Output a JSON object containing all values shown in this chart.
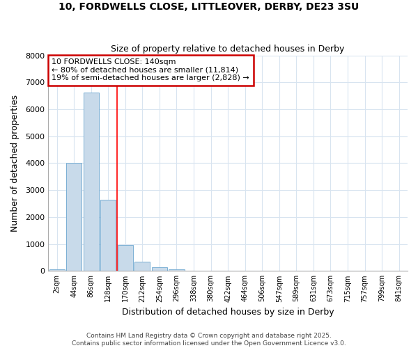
{
  "title_line1": "10, FORDWELLS CLOSE, LITTLEOVER, DERBY, DE23 3SU",
  "title_line2": "Size of property relative to detached houses in Derby",
  "xlabel": "Distribution of detached houses by size in Derby",
  "ylabel": "Number of detached properties",
  "bar_color": "#c8daea",
  "bar_edge_color": "#7aafd4",
  "categories": [
    "2sqm",
    "44sqm",
    "86sqm",
    "128sqm",
    "170sqm",
    "212sqm",
    "254sqm",
    "296sqm",
    "338sqm",
    "380sqm",
    "422sqm",
    "464sqm",
    "506sqm",
    "547sqm",
    "589sqm",
    "631sqm",
    "673sqm",
    "715sqm",
    "757sqm",
    "799sqm",
    "841sqm"
  ],
  "values": [
    60,
    4020,
    6620,
    2640,
    970,
    340,
    130,
    65,
    20,
    5,
    2,
    0,
    0,
    0,
    0,
    0,
    0,
    0,
    0,
    0,
    0
  ],
  "ylim": [
    0,
    8000
  ],
  "yticks": [
    0,
    1000,
    2000,
    3000,
    4000,
    5000,
    6000,
    7000,
    8000
  ],
  "red_line_x": 3.5,
  "annotation_title": "10 FORDWELLS CLOSE: 140sqm",
  "annotation_line1": "← 80% of detached houses are smaller (11,814)",
  "annotation_line2": "19% of semi-detached houses are larger (2,828) →",
  "footer_line1": "Contains HM Land Registry data © Crown copyright and database right 2025.",
  "footer_line2": "Contains public sector information licensed under the Open Government Licence v3.0.",
  "background_color": "#ffffff",
  "grid_color": "#d8e4f0"
}
